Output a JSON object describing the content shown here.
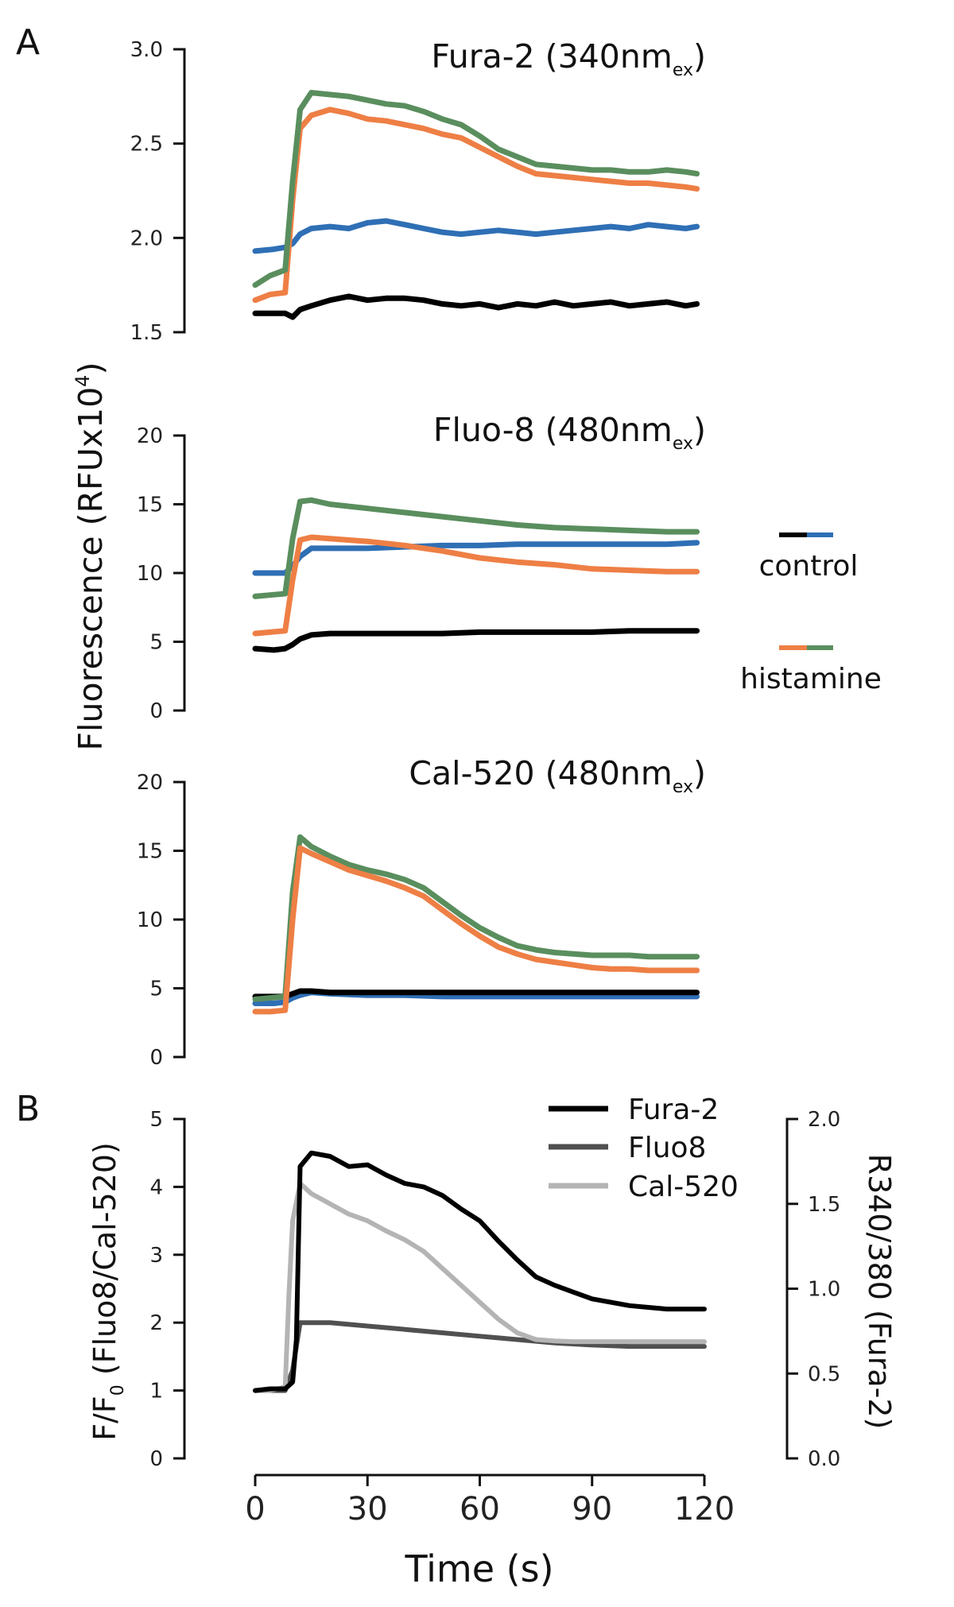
{
  "figure": {
    "panel_a_label": "A",
    "panel_b_label": "B",
    "shared_ylabel_a": "Fluorescence (RFUx10",
    "shared_ylabel_a_sup": "4",
    "shared_ylabel_a_end": ")",
    "xlabel": "Time (s)"
  },
  "legend_a": {
    "control": "control",
    "histamine": "histamine"
  },
  "colors": {
    "black": "#000000",
    "blue": "#2f6fb5",
    "orange": "#ee7f45",
    "green": "#5a8e5e",
    "dark_gray": "#505050",
    "light_gray": "#b4b4b4"
  },
  "chart_data": [
    {
      "type": "line",
      "title": "Fura-2 (340nm",
      "title_sub": "ex",
      "title_end": ")",
      "ylim": [
        1.5,
        3.0
      ],
      "yticks": [
        "1.5",
        "2.0",
        "2.5",
        "3.0"
      ],
      "xlim": [
        0,
        120
      ],
      "series": [
        {
          "group": "control",
          "color": "#000000",
          "x": [
            0,
            5,
            8,
            10,
            12,
            15,
            20,
            25,
            30,
            35,
            40,
            45,
            50,
            55,
            60,
            65,
            70,
            75,
            80,
            85,
            90,
            95,
            100,
            105,
            110,
            115,
            118
          ],
          "y": [
            1.6,
            1.6,
            1.6,
            1.58,
            1.62,
            1.64,
            1.67,
            1.69,
            1.67,
            1.68,
            1.68,
            1.67,
            1.65,
            1.64,
            1.65,
            1.63,
            1.65,
            1.64,
            1.66,
            1.64,
            1.65,
            1.66,
            1.64,
            1.65,
            1.66,
            1.64,
            1.65
          ]
        },
        {
          "group": "control",
          "color": "#2f6fb5",
          "x": [
            0,
            5,
            8,
            10,
            12,
            15,
            20,
            25,
            30,
            35,
            40,
            45,
            50,
            55,
            60,
            65,
            70,
            75,
            80,
            85,
            90,
            95,
            100,
            105,
            110,
            115,
            118
          ],
          "y": [
            1.93,
            1.94,
            1.95,
            1.97,
            2.02,
            2.05,
            2.06,
            2.05,
            2.08,
            2.09,
            2.07,
            2.05,
            2.03,
            2.02,
            2.03,
            2.04,
            2.03,
            2.02,
            2.03,
            2.04,
            2.05,
            2.06,
            2.05,
            2.07,
            2.06,
            2.05,
            2.06
          ]
        },
        {
          "group": "histamine",
          "color": "#ee7f45",
          "x": [
            0,
            4,
            8,
            10,
            12,
            15,
            20,
            25,
            30,
            35,
            40,
            45,
            50,
            55,
            60,
            65,
            70,
            75,
            80,
            85,
            90,
            95,
            100,
            105,
            110,
            115,
            118
          ],
          "y": [
            1.67,
            1.7,
            1.71,
            2.2,
            2.58,
            2.65,
            2.68,
            2.66,
            2.63,
            2.62,
            2.6,
            2.58,
            2.55,
            2.53,
            2.48,
            2.43,
            2.38,
            2.34,
            2.33,
            2.32,
            2.31,
            2.3,
            2.29,
            2.29,
            2.28,
            2.27,
            2.26
          ]
        },
        {
          "group": "histamine",
          "color": "#5a8e5e",
          "x": [
            0,
            4,
            8,
            10,
            12,
            15,
            20,
            25,
            30,
            35,
            40,
            45,
            50,
            55,
            60,
            65,
            70,
            75,
            80,
            85,
            90,
            95,
            100,
            105,
            110,
            115,
            118
          ],
          "y": [
            1.75,
            1.8,
            1.83,
            2.3,
            2.68,
            2.77,
            2.76,
            2.75,
            2.73,
            2.71,
            2.7,
            2.67,
            2.63,
            2.6,
            2.54,
            2.47,
            2.43,
            2.39,
            2.38,
            2.37,
            2.36,
            2.36,
            2.35,
            2.35,
            2.36,
            2.35,
            2.34
          ]
        }
      ]
    },
    {
      "type": "line",
      "title": "Fluo-8 (480nm",
      "title_sub": "ex",
      "title_end": ")",
      "ylim": [
        0,
        20
      ],
      "yticks": [
        "0",
        "5",
        "10",
        "15",
        "20"
      ],
      "xlim": [
        0,
        120
      ],
      "series": [
        {
          "group": "control",
          "color": "#000000",
          "x": [
            0,
            5,
            8,
            10,
            12,
            15,
            20,
            30,
            40,
            50,
            60,
            70,
            80,
            90,
            100,
            110,
            118
          ],
          "y": [
            4.5,
            4.4,
            4.5,
            4.8,
            5.2,
            5.5,
            5.6,
            5.6,
            5.6,
            5.6,
            5.7,
            5.7,
            5.7,
            5.7,
            5.8,
            5.8,
            5.8
          ]
        },
        {
          "group": "control",
          "color": "#2f6fb5",
          "x": [
            0,
            5,
            8,
            10,
            12,
            15,
            20,
            30,
            40,
            50,
            60,
            70,
            80,
            90,
            100,
            110,
            118
          ],
          "y": [
            10.0,
            10.0,
            10.0,
            10.5,
            11.2,
            11.8,
            11.8,
            11.8,
            11.9,
            12.0,
            12.0,
            12.1,
            12.1,
            12.1,
            12.1,
            12.1,
            12.2
          ]
        },
        {
          "group": "histamine",
          "color": "#ee7f45",
          "x": [
            0,
            4,
            8,
            10,
            12,
            15,
            20,
            30,
            40,
            50,
            60,
            70,
            80,
            90,
            100,
            110,
            118
          ],
          "y": [
            5.6,
            5.7,
            5.8,
            9.5,
            12.4,
            12.6,
            12.5,
            12.3,
            12.0,
            11.6,
            11.1,
            10.8,
            10.6,
            10.3,
            10.2,
            10.1,
            10.1
          ]
        },
        {
          "group": "histamine",
          "color": "#5a8e5e",
          "x": [
            0,
            4,
            8,
            10,
            12,
            15,
            20,
            30,
            40,
            50,
            60,
            70,
            80,
            90,
            100,
            110,
            118
          ],
          "y": [
            8.3,
            8.4,
            8.5,
            12.5,
            15.2,
            15.3,
            15.0,
            14.7,
            14.4,
            14.1,
            13.8,
            13.5,
            13.3,
            13.2,
            13.1,
            13.0,
            13.0
          ]
        }
      ]
    },
    {
      "type": "line",
      "title": "Cal-520 (480nm",
      "title_sub": "ex",
      "title_end": ")",
      "ylim": [
        0,
        20
      ],
      "yticks": [
        "0",
        "5",
        "10",
        "15",
        "20"
      ],
      "xlim": [
        0,
        120
      ],
      "series": [
        {
          "group": "control",
          "color": "#2f6fb5",
          "x": [
            0,
            5,
            8,
            10,
            12,
            15,
            20,
            30,
            40,
            50,
            60,
            70,
            80,
            90,
            100,
            110,
            118
          ],
          "y": [
            3.9,
            3.9,
            4.0,
            4.3,
            4.5,
            4.7,
            4.6,
            4.5,
            4.5,
            4.4,
            4.4,
            4.4,
            4.4,
            4.4,
            4.4,
            4.4,
            4.4
          ]
        },
        {
          "group": "control",
          "color": "#000000",
          "x": [
            0,
            5,
            8,
            10,
            12,
            15,
            20,
            30,
            40,
            50,
            60,
            70,
            80,
            90,
            100,
            110,
            118
          ],
          "y": [
            4.4,
            4.4,
            4.4,
            4.6,
            4.8,
            4.8,
            4.7,
            4.7,
            4.7,
            4.7,
            4.7,
            4.7,
            4.7,
            4.7,
            4.7,
            4.7,
            4.7
          ]
        },
        {
          "group": "histamine",
          "color": "#5a8e5e",
          "x": [
            0,
            4,
            8,
            10,
            12,
            15,
            20,
            25,
            30,
            35,
            40,
            45,
            50,
            55,
            60,
            65,
            70,
            75,
            80,
            85,
            90,
            95,
            100,
            105,
            110,
            115,
            118
          ],
          "y": [
            4.2,
            4.3,
            4.4,
            12.0,
            16.0,
            15.3,
            14.6,
            14.0,
            13.6,
            13.3,
            12.9,
            12.3,
            11.3,
            10.3,
            9.4,
            8.7,
            8.1,
            7.8,
            7.6,
            7.5,
            7.4,
            7.4,
            7.4,
            7.3,
            7.3,
            7.3,
            7.3
          ]
        },
        {
          "group": "histamine",
          "color": "#ee7f45",
          "x": [
            0,
            4,
            8,
            10,
            12,
            15,
            20,
            25,
            30,
            35,
            40,
            45,
            50,
            55,
            60,
            65,
            70,
            75,
            80,
            85,
            90,
            95,
            100,
            105,
            110,
            115,
            118
          ],
          "y": [
            3.3,
            3.3,
            3.4,
            10.0,
            15.2,
            14.8,
            14.2,
            13.6,
            13.2,
            12.8,
            12.3,
            11.7,
            10.7,
            9.7,
            8.8,
            8.0,
            7.5,
            7.1,
            6.9,
            6.7,
            6.5,
            6.4,
            6.4,
            6.3,
            6.3,
            6.3,
            6.3
          ]
        }
      ]
    },
    {
      "type": "line",
      "ylabel_left": "F/F",
      "ylabel_left_sub": "0",
      "ylabel_left_end": " (Fluo8/Cal-520)",
      "ylabel_right": "R340/380 (Fura-2)",
      "ylim_left": [
        0,
        5
      ],
      "yticks_left": [
        "0",
        "1",
        "2",
        "3",
        "4",
        "5"
      ],
      "ylim_right": [
        0.0,
        2.0
      ],
      "yticks_right": [
        "0.0",
        "0.5",
        "1.0",
        "1.5",
        "2.0"
      ],
      "xlim": [
        0,
        120
      ],
      "xticks": [
        "0",
        "30",
        "60",
        "90",
        "120"
      ],
      "series": [
        {
          "name": "Fura-2",
          "color": "#000000",
          "axis": "right",
          "x": [
            0,
            4,
            8,
            10,
            11,
            12,
            15,
            20,
            25,
            30,
            35,
            40,
            45,
            50,
            55,
            60,
            65,
            70,
            75,
            80,
            85,
            90,
            95,
            100,
            105,
            110,
            115,
            120
          ],
          "y": [
            0.4,
            0.41,
            0.41,
            0.45,
            0.7,
            1.72,
            1.8,
            1.78,
            1.72,
            1.73,
            1.67,
            1.62,
            1.6,
            1.55,
            1.47,
            1.4,
            1.28,
            1.17,
            1.07,
            1.02,
            0.98,
            0.94,
            0.92,
            0.9,
            0.89,
            0.88,
            0.88,
            0.88
          ]
        },
        {
          "name": "Fluo8",
          "color": "#505050",
          "axis": "left",
          "x": [
            0,
            4,
            8,
            10,
            12,
            15,
            20,
            30,
            40,
            50,
            60,
            70,
            80,
            90,
            100,
            110,
            120
          ],
          "y": [
            1.0,
            1.0,
            1.0,
            1.3,
            2.0,
            2.0,
            2.0,
            1.95,
            1.9,
            1.85,
            1.8,
            1.75,
            1.7,
            1.67,
            1.65,
            1.65,
            1.65
          ]
        },
        {
          "name": "Cal-520",
          "color": "#b4b4b4",
          "axis": "left",
          "x": [
            0,
            4,
            8,
            9,
            10,
            12,
            15,
            20,
            25,
            30,
            35,
            40,
            45,
            50,
            55,
            60,
            65,
            70,
            75,
            80,
            85,
            90,
            95,
            100,
            105,
            110,
            115,
            120
          ],
          "y": [
            1.0,
            1.0,
            1.05,
            2.4,
            3.5,
            4.05,
            3.9,
            3.75,
            3.6,
            3.5,
            3.35,
            3.22,
            3.05,
            2.8,
            2.55,
            2.3,
            2.05,
            1.85,
            1.75,
            1.73,
            1.72,
            1.72,
            1.72,
            1.72,
            1.72,
            1.72,
            1.72,
            1.72
          ]
        }
      ]
    }
  ]
}
